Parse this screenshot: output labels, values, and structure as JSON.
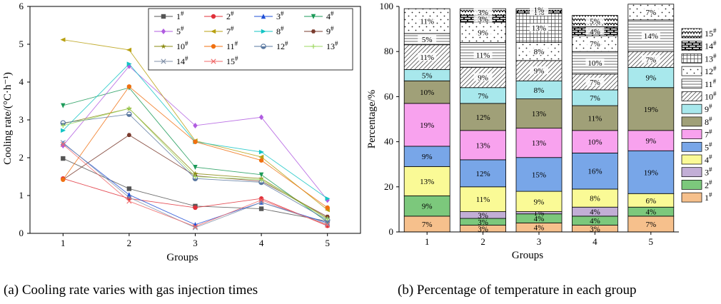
{
  "captions": {
    "a": "(a) Cooling rate varies with gas injection times",
    "b": "(b) Percentage of temperature in each group"
  },
  "chart_data": [
    {
      "type": "line",
      "xlabel": "Groups",
      "ylabel": "Cooling rate/(°C·h⁻¹)",
      "x": [
        1,
        2,
        3,
        4,
        5
      ],
      "xlim": [
        0.5,
        5.5
      ],
      "ylim": [
        0,
        6
      ],
      "yticks": [
        0,
        1,
        2,
        3,
        4,
        5,
        6
      ],
      "legend_position": "top-right",
      "series": [
        {
          "name": "1#",
          "color": "#555555",
          "marker": "square",
          "values": [
            1.98,
            1.18,
            0.72,
            0.65,
            0.32
          ]
        },
        {
          "name": "2#",
          "color": "#e0303a",
          "marker": "circle",
          "values": [
            1.45,
            0.92,
            0.68,
            0.92,
            0.2
          ]
        },
        {
          "name": "3#",
          "color": "#1f4fd6",
          "marker": "triangle",
          "values": [
            2.38,
            1.02,
            0.23,
            0.82,
            0.28
          ]
        },
        {
          "name": "4#",
          "color": "#1b9a58",
          "marker": "tri-down",
          "values": [
            3.38,
            3.85,
            1.75,
            1.55,
            0.3
          ]
        },
        {
          "name": "5#",
          "color": "#b05ce0",
          "marker": "diamond",
          "values": [
            2.32,
            4.42,
            2.85,
            3.07,
            0.88
          ]
        },
        {
          "name": "7#",
          "color": "#b8a010",
          "marker": "tri-left",
          "values": [
            5.12,
            4.85,
            2.45,
            2.02,
            0.62
          ]
        },
        {
          "name": "8#",
          "color": "#13c4c4",
          "marker": "tri-right",
          "values": [
            2.72,
            4.48,
            2.42,
            2.15,
            0.92
          ]
        },
        {
          "name": "9#",
          "color": "#7a3b2e",
          "marker": "hexagon",
          "values": [
            1.42,
            2.6,
            1.52,
            1.38,
            0.44
          ]
        },
        {
          "name": "10#",
          "color": "#8a8a10",
          "marker": "star",
          "values": [
            2.9,
            3.3,
            1.58,
            1.45,
            0.4
          ]
        },
        {
          "name": "11#",
          "color": "#f07010",
          "marker": "circle",
          "values": [
            1.42,
            3.88,
            2.42,
            1.93,
            0.68
          ]
        },
        {
          "name": "12#",
          "color": "#5a78a0",
          "marker": "half",
          "values": [
            2.92,
            3.15,
            1.45,
            1.35,
            0.35
          ]
        },
        {
          "name": "13#",
          "color": "#9ed860",
          "marker": "plus",
          "values": [
            2.85,
            3.3,
            1.5,
            1.42,
            0.38
          ]
        },
        {
          "name": "14#",
          "color": "#8090a8",
          "marker": "x",
          "values": [
            2.4,
            0.95,
            0.15,
            0.82,
            0.25
          ]
        },
        {
          "name": "15#",
          "color": "#f06868",
          "marker": "x",
          "values": [
            2.35,
            0.85,
            0.18,
            0.88,
            0.22
          ]
        }
      ]
    },
    {
      "type": "stacked_bar",
      "xlabel": "Groups",
      "ylabel": "Percentage/%",
      "categories": [
        "1",
        "2",
        "3",
        "4",
        "5"
      ],
      "ylim": [
        0,
        100
      ],
      "yticks": [
        0,
        20,
        40,
        60,
        80,
        100
      ],
      "legend_position": "right",
      "series": [
        {
          "name": "1#",
          "color": "#f6c08c",
          "pattern": "solid",
          "values": [
            7,
            3,
            4,
            3,
            7
          ],
          "labels": [
            "7%",
            "3%",
            "4%",
            "3%",
            "7%"
          ]
        },
        {
          "name": "2#",
          "color": "#7cc87c",
          "pattern": "solid",
          "values": [
            9,
            3,
            4,
            4,
            4
          ],
          "labels": [
            "9%",
            "3%",
            "4%",
            "4%",
            "4%"
          ]
        },
        {
          "name": "3#",
          "color": "#c2aed6",
          "pattern": "solid",
          "values": [
            0,
            3,
            1,
            4,
            0
          ],
          "labels": [
            "",
            "3%",
            "1%",
            "4%",
            ""
          ]
        },
        {
          "name": "4#",
          "color": "#fafa96",
          "pattern": "solid",
          "values": [
            13,
            11,
            9,
            8,
            6
          ],
          "labels": [
            "13%",
            "11%",
            "9%",
            "8%",
            "6%"
          ]
        },
        {
          "name": "5#",
          "color": "#78a6e8",
          "pattern": "solid",
          "values": [
            9,
            12,
            15,
            16,
            19
          ],
          "labels": [
            "9%",
            "12%",
            "15%",
            "16%",
            "19%"
          ]
        },
        {
          "name": "7#",
          "color": "#f8a2ee",
          "pattern": "solid",
          "values": [
            19,
            13,
            13,
            10,
            9
          ],
          "labels": [
            "19%",
            "13%",
            "13%",
            "10%",
            "9%"
          ]
        },
        {
          "name": "8#",
          "color": "#a0a078",
          "pattern": "solid",
          "values": [
            10,
            12,
            13,
            11,
            19
          ],
          "labels": [
            "10%",
            "12%",
            "13%",
            "11%",
            "19%"
          ]
        },
        {
          "name": "9#",
          "color": "#a8e8ec",
          "pattern": "solid",
          "values": [
            5,
            7,
            8,
            7,
            9
          ],
          "labels": [
            "5%",
            "7%",
            "8%",
            "7%",
            "9%"
          ]
        },
        {
          "name": "10#",
          "color": "#ffffff",
          "pattern": "diagonal",
          "values": [
            11,
            9,
            9,
            7,
            7
          ],
          "labels": [
            "11%",
            "9%",
            "9%",
            "7%",
            "7%"
          ]
        },
        {
          "name": "11#",
          "color": "#ffffff",
          "pattern": "hlines",
          "values": [
            5,
            11,
            0,
            10,
            14
          ],
          "labels": [
            "5%",
            "11%",
            "",
            "10%",
            "14%"
          ]
        },
        {
          "name": "12#",
          "color": "#ffffff",
          "pattern": "dots",
          "values": [
            11,
            9,
            8,
            7,
            7
          ],
          "labels": [
            "11%",
            "9%",
            "8%",
            "7%",
            "7%"
          ]
        },
        {
          "name": "13#",
          "color": "#ffffff",
          "pattern": "grid",
          "values": [
            0,
            0,
            13,
            0,
            0
          ],
          "labels": [
            "",
            "",
            "13%",
            "",
            ""
          ]
        },
        {
          "name": "14#",
          "color": "#ffffff",
          "pattern": "brick",
          "values": [
            0,
            3,
            1,
            4,
            0
          ],
          "labels": [
            "",
            "3%",
            "1%",
            "4%",
            ""
          ]
        },
        {
          "name": "15#",
          "color": "#ffffff",
          "pattern": "scallop",
          "values": [
            0,
            3,
            1,
            5,
            0
          ],
          "labels": [
            "",
            "3%",
            "1%",
            "5%",
            ""
          ]
        }
      ]
    }
  ]
}
